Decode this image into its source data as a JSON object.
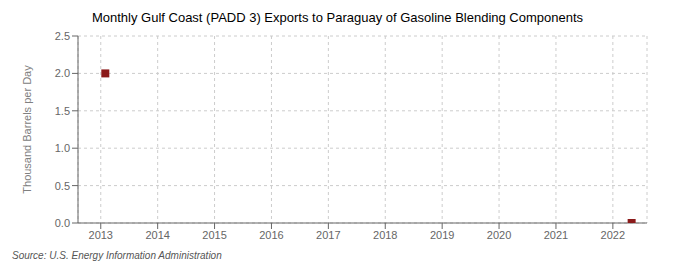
{
  "chart_data": {
    "type": "scatter",
    "title": "Monthly Gulf Coast (PADD 3) Exports to Paraguay of Gasoline Blending Components",
    "ylabel": "Thousand Barrels per Day",
    "source": "Source: U.S. Energy Information Administration",
    "x": [
      2013.08,
      2022.33
    ],
    "values": [
      2.0,
      0.0
    ],
    "color": "#8b1a1a",
    "marker": "square",
    "xlim": [
      2012.6,
      2022.6
    ],
    "ylim": [
      0.0,
      2.5
    ],
    "xticks": [
      2013,
      2014,
      2015,
      2016,
      2017,
      2018,
      2019,
      2020,
      2021,
      2022
    ],
    "yticks": [
      {
        "value": 0.0,
        "label": "0.0"
      },
      0.5,
      {
        "value": 1.0,
        "label": "1.0"
      },
      1.5,
      {
        "value": 2.0,
        "label": "2.0"
      },
      2.5
    ],
    "grid": true
  }
}
